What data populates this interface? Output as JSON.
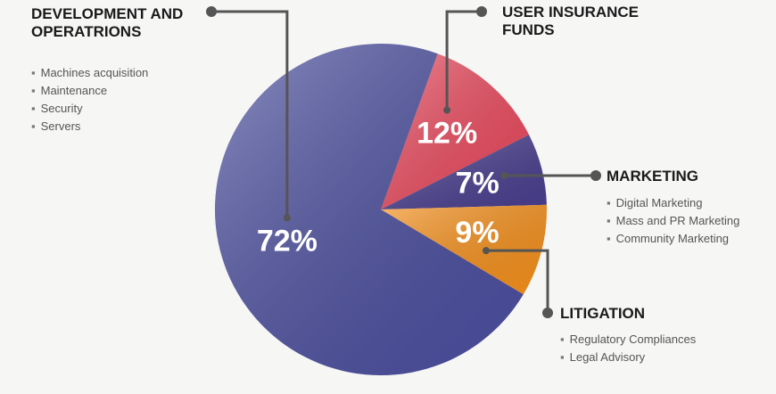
{
  "chart_data": {
    "type": "pie",
    "categories": [
      "DEVELOPMENT AND OPERATRIONS",
      "USER INSURANCE FUNDS",
      "MARKETING",
      "LITIGATION"
    ],
    "values": [
      72,
      12,
      7,
      9
    ],
    "value_labels": [
      "72%",
      "12%",
      "7%",
      "9%"
    ],
    "colors": [
      "#4c4f9f",
      "#ea4a5e",
      "#4a3f8f",
      "#f5901c"
    ],
    "details": [
      [
        "Machines acquisition",
        "Maintenance",
        "Security",
        "Servers"
      ],
      [],
      [
        "Digital Marketing",
        "Mass and PR Marketing",
        "Community Marketing"
      ],
      [
        "Regulatory Compliances",
        "Legal Advisory"
      ]
    ]
  }
}
